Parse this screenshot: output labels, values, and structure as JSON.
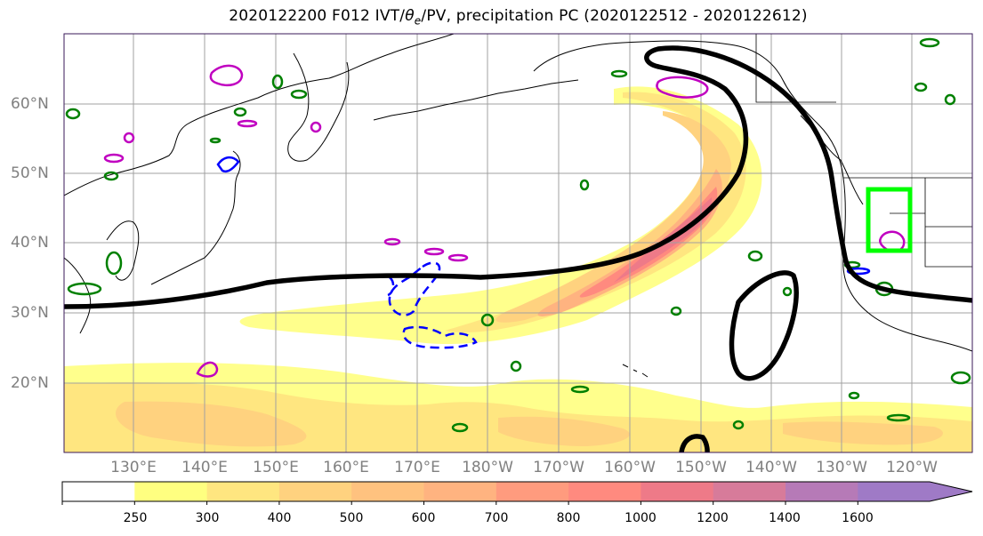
{
  "title": {
    "prefix": "2020122200 F012 IVT/",
    "theta": "θ",
    "theta_sub": "e",
    "suffix": "/PV, precipitation PC (2020122512 - 2020122612)"
  },
  "lat_labels": [
    "60°N",
    "50°N",
    "40°N",
    "30°N",
    "20°N"
  ],
  "lon_labels": [
    "130°E",
    "140°E",
    "150°E",
    "160°E",
    "170°E",
    "180°W",
    "170°W",
    "160°W",
    "150°W",
    "140°W",
    "130°W",
    "120°W"
  ],
  "colorbar": {
    "ticks": [
      "250",
      "300",
      "400",
      "500",
      "600",
      "700",
      "800",
      "1000",
      "1200",
      "1400",
      "1600"
    ],
    "colors": [
      "#ffffff",
      "#ffff80",
      "#ffe680",
      "#ffd27f",
      "#ffc27f",
      "#ffb380",
      "#ff9b7e",
      "#ff8a7f",
      "#ee7a88",
      "#d77b9a",
      "#b67ab7",
      "#9f7ac6"
    ]
  },
  "colors": {
    "pv_contour": "#c000c0",
    "theta_contour": "#008000",
    "dashed_contour": "#0000ff",
    "thick_contour": "#000000",
    "target_box": "#00ff00",
    "grid": "#a0a0a0",
    "coast": "#000000"
  }
}
